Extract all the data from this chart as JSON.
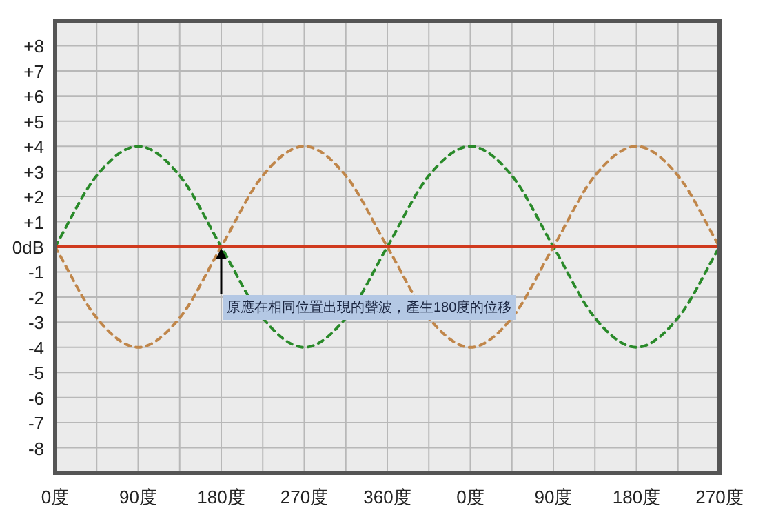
{
  "chart_data": {
    "type": "line",
    "categories": [
      "0度",
      null,
      "90度",
      null,
      "180度",
      null,
      "270度",
      null,
      "360度",
      null,
      "0度",
      null,
      "90度",
      null,
      "180度",
      null,
      "270度"
    ],
    "series": [
      {
        "color": "#2a8a2a",
        "line_style": "dashed",
        "values": [
          0,
          2.83,
          4,
          2.83,
          0,
          -2.83,
          -4,
          -2.83,
          0,
          2.83,
          4,
          2.83,
          0,
          -2.83,
          -4,
          -2.83,
          0
        ]
      },
      {
        "color": "#c0864a",
        "line_style": "dashed",
        "values": [
          0,
          -2.83,
          -4,
          -2.83,
          0,
          2.83,
          4,
          2.83,
          0,
          -2.83,
          -4,
          -2.83,
          0,
          2.83,
          4,
          2.83,
          0
        ]
      }
    ],
    "ref_lines": [
      {
        "axis": "y",
        "value": 0,
        "color": "#d03a1e"
      }
    ],
    "annotations": [
      {
        "text": "原應在相同位置出現的聲波，產生180度的位移",
        "x": "180度",
        "y": 0
      }
    ],
    "ylim": [
      -9,
      9
    ],
    "yticks": [
      {
        "value": 8,
        "label": "+8"
      },
      {
        "value": 7,
        "label": "+7"
      },
      {
        "value": 6,
        "label": "+6"
      },
      {
        "value": 5,
        "label": "+5"
      },
      {
        "value": 4,
        "label": "+4"
      },
      {
        "value": 3,
        "label": "+3"
      },
      {
        "value": 2,
        "label": "+2"
      },
      {
        "value": 1,
        "label": "+1"
      },
      {
        "value": 0,
        "label": "0dB"
      },
      {
        "value": -1,
        "label": "-1"
      },
      {
        "value": -2,
        "label": "-2"
      },
      {
        "value": -3,
        "label": "-3"
      },
      {
        "value": -4,
        "label": "-4"
      },
      {
        "value": -5,
        "label": "-5"
      },
      {
        "value": -6,
        "label": "-6"
      },
      {
        "value": -7,
        "label": "-7"
      },
      {
        "value": -8,
        "label": "-8"
      }
    ],
    "grid": true
  }
}
